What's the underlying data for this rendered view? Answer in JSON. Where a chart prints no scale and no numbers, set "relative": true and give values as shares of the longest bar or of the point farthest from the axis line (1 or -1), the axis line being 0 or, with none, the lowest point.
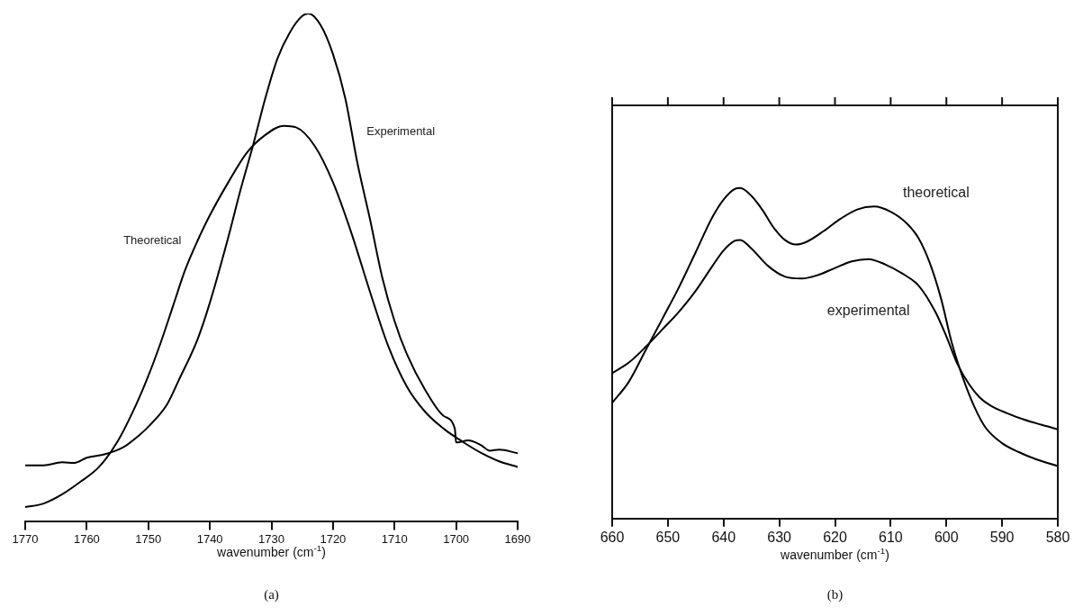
{
  "chart_data": [
    {
      "type": "line",
      "title": "(a)",
      "xlabel": "wavenumber (cm$^{-1}$)",
      "relative": true,
      "marker": "none",
      "legend": false,
      "tick_labels": "x",
      "xlim": [
        1770,
        1690
      ],
      "xticks": [
        1770,
        1760,
        1750,
        1740,
        1730,
        1720,
        1710,
        1700,
        1690
      ],
      "series": [
        {
          "name": "Experimental",
          "color": "#000000",
          "x": [
            1770,
            1767,
            1764,
            1762,
            1760,
            1757,
            1754,
            1752,
            1750,
            1747,
            1745,
            1742,
            1740,
            1737,
            1735,
            1733,
            1731,
            1729,
            1727,
            1725,
            1724,
            1722,
            1720,
            1718,
            1716,
            1714,
            1712,
            1710,
            1708,
            1705,
            1702,
            1700.2,
            1700,
            1698,
            1696,
            1694.5,
            1693,
            1690
          ],
          "values": [
            0.111,
            0.111,
            0.117,
            0.116,
            0.126,
            0.133,
            0.147,
            0.165,
            0.187,
            0.23,
            0.28,
            0.359,
            0.431,
            0.56,
            0.654,
            0.74,
            0.833,
            0.912,
            0.963,
            0.995,
            1,
            0.977,
            0.92,
            0.833,
            0.704,
            0.596,
            0.481,
            0.395,
            0.33,
            0.259,
            0.208,
            0.183,
            0.156,
            0.16,
            0.151,
            0.14,
            0.142,
            0.135
          ]
        },
        {
          "name": "Theoretical",
          "color": "#000000",
          "x": [
            1770,
            1767,
            1764,
            1761,
            1758,
            1755,
            1752,
            1750,
            1748,
            1746,
            1744,
            1742,
            1740,
            1737,
            1734,
            1731,
            1728,
            1726,
            1723,
            1720,
            1717,
            1714,
            1711,
            1708,
            1705,
            1702,
            1699,
            1696,
            1693,
            1690
          ],
          "values": [
            0.029,
            0.036,
            0.054,
            0.079,
            0.108,
            0.158,
            0.23,
            0.287,
            0.352,
            0.424,
            0.496,
            0.553,
            0.603,
            0.668,
            0.726,
            0.761,
            0.779,
            0.776,
            0.74,
            0.668,
            0.568,
            0.453,
            0.345,
            0.266,
            0.216,
            0.183,
            0.158,
            0.136,
            0.119,
            0.108
          ]
        }
      ]
    },
    {
      "type": "line",
      "title": "(b)",
      "xlabel": "wavenumber (cm$^{-1}$)",
      "relative": true,
      "marker": "none",
      "legend": false,
      "tick_labels": "x",
      "xlim": [
        660,
        580
      ],
      "xticks": [
        660,
        650,
        640,
        630,
        620,
        610,
        600,
        590,
        580
      ],
      "series": [
        {
          "name": "theoretical",
          "color": "#000000",
          "x": [
            660,
            657,
            654,
            651,
            648,
            645,
            642,
            640,
            638,
            637,
            635,
            633,
            631,
            629,
            627,
            625,
            622,
            619,
            616,
            613,
            610,
            607,
            605,
            603,
            601,
            599,
            597,
            595,
            593,
            590,
            587,
            584,
            580
          ],
          "values": [
            0.35,
            0.414,
            0.509,
            0.604,
            0.7,
            0.806,
            0.912,
            0.965,
            0.997,
            1,
            0.976,
            0.933,
            0.88,
            0.843,
            0.829,
            0.838,
            0.87,
            0.907,
            0.935,
            0.944,
            0.928,
            0.891,
            0.848,
            0.774,
            0.668,
            0.53,
            0.424,
            0.339,
            0.276,
            0.228,
            0.201,
            0.18,
            0.159
          ]
        },
        {
          "name": "experimental",
          "color": "#000000",
          "x": [
            660,
            657,
            654,
            651,
            648,
            645,
            642,
            640,
            638,
            637,
            635,
            632,
            629,
            626,
            623,
            620,
            617,
            614,
            611,
            608,
            605,
            602,
            600,
            598,
            596,
            594,
            592,
            589,
            586,
            583,
            580
          ],
          "values": [
            0.44,
            0.472,
            0.519,
            0.572,
            0.626,
            0.689,
            0.764,
            0.811,
            0.84,
            0.843,
            0.817,
            0.764,
            0.732,
            0.726,
            0.737,
            0.758,
            0.778,
            0.785,
            0.769,
            0.742,
            0.705,
            0.626,
            0.551,
            0.467,
            0.408,
            0.366,
            0.341,
            0.318,
            0.299,
            0.284,
            0.27
          ]
        }
      ]
    }
  ]
}
